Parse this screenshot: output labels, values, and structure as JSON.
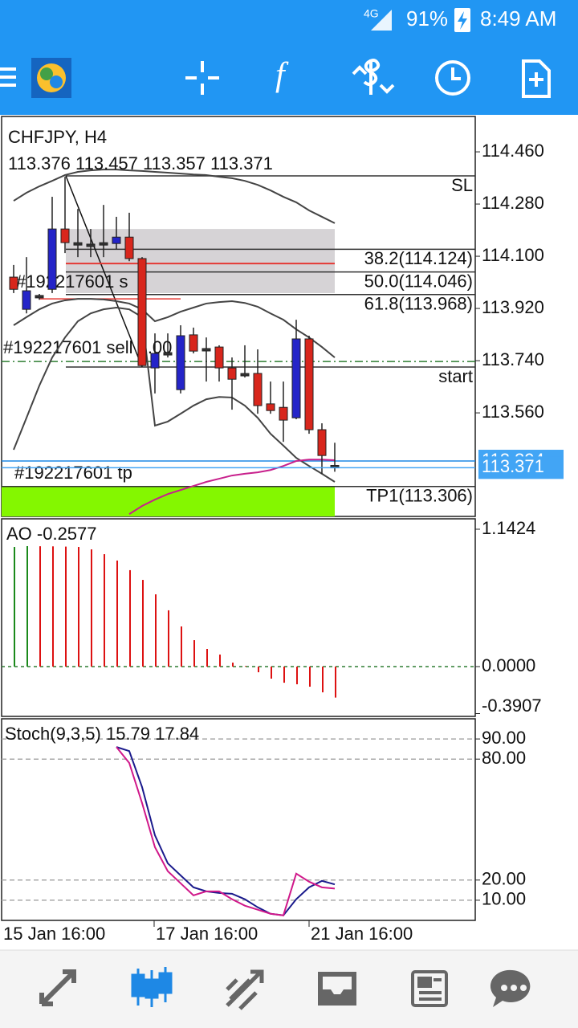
{
  "status_bar": {
    "network": "4G",
    "battery": "91%",
    "time": "8:49 AM"
  },
  "chart_data": [
    {
      "type": "candlestick",
      "title": "CHFJPY, H4",
      "subtitle": "113.376 113.457 113.357 113.371",
      "open": [
        114.028,
        113.917,
        113.959,
        113.986,
        114.194,
        114.144,
        114.139,
        114.144,
        114.144,
        114.166,
        114.092,
        113.715,
        113.765,
        113.64,
        113.829,
        113.779,
        113.787,
        113.715,
        113.693,
        113.696,
        113.591,
        113.579,
        113.543,
        113.815,
        113.502,
        113.376
      ],
      "high": [
        114.07,
        114.097,
        113.97,
        114.305,
        114.374,
        114.263,
        114.194,
        114.277,
        114.236,
        114.25,
        114.097,
        113.834,
        113.834,
        113.862,
        113.854,
        113.82,
        113.793,
        113.751,
        113.793,
        113.779,
        113.668,
        113.668,
        113.881,
        113.826,
        113.524,
        113.457
      ],
      "low": [
        113.973,
        113.903,
        113.95,
        113.973,
        114.111,
        114.097,
        114.097,
        114.097,
        114.125,
        114.083,
        113.718,
        113.627,
        113.751,
        113.627,
        113.765,
        113.668,
        113.668,
        113.571,
        113.682,
        113.557,
        113.557,
        113.46,
        113.538,
        113.488,
        113.35,
        113.357
      ],
      "close": [
        113.986,
        113.981,
        113.962,
        114.194,
        114.147,
        114.144,
        114.139,
        114.144,
        114.166,
        114.092,
        113.723,
        113.765,
        113.765,
        113.826,
        113.773,
        113.779,
        113.715,
        113.676,
        113.693,
        113.585,
        113.568,
        113.535,
        113.815,
        113.502,
        113.413,
        113.371
      ],
      "up_color": "#2424c8",
      "down_color": "#d8261c",
      "ylim": [
        113.203,
        114.582
      ],
      "yticks": [
        {
          "value": 114.46,
          "label": "114.460"
        },
        {
          "value": 114.28,
          "label": "114.280"
        },
        {
          "value": 114.1,
          "label": "114.100"
        },
        {
          "value": 113.92,
          "label": "113.920"
        },
        {
          "value": 113.74,
          "label": "113.740"
        },
        {
          "value": 113.56,
          "label": "113.560"
        }
      ],
      "bands": [
        {
          "color": "#444444",
          "values": [
            114.291,
            114.319,
            114.341,
            114.36,
            114.38,
            114.391,
            114.396,
            114.399,
            114.399,
            114.396,
            114.394,
            114.391,
            114.388,
            114.385,
            114.382,
            114.38,
            114.374,
            114.369,
            114.36,
            114.346,
            114.327,
            114.305,
            114.286,
            114.258,
            114.236,
            114.214
          ]
        },
        {
          "color": "#444444",
          "values": [
            113.862,
            113.89,
            113.917,
            113.937,
            113.948,
            113.953,
            113.953,
            113.951,
            113.945,
            113.937,
            113.917,
            113.876,
            113.89,
            113.909,
            113.923,
            113.937,
            113.942,
            113.945,
            113.939,
            113.926,
            113.903,
            113.881,
            113.848,
            113.82,
            113.787,
            113.751
          ]
        },
        {
          "color": "#444444",
          "values": [
            113.433,
            113.543,
            113.654,
            113.751,
            113.82,
            113.876,
            113.903,
            113.917,
            113.923,
            113.917,
            113.89,
            113.516,
            113.53,
            113.557,
            113.585,
            113.607,
            113.615,
            113.613,
            113.585,
            113.543,
            113.488,
            113.447,
            113.405,
            113.377,
            113.35,
            113.322
          ]
        },
        {
          "color": "#c8208c",
          "values": [
            null,
            null,
            null,
            null,
            null,
            null,
            null,
            null,
            null,
            113.211,
            113.239,
            113.261,
            113.28,
            113.294,
            113.308,
            113.322,
            113.333,
            113.344,
            113.35,
            113.355,
            113.363,
            113.377,
            113.394,
            113.399,
            113.399,
            113.397
          ]
        }
      ],
      "fib_zone": [
        113.973,
        114.194
      ],
      "levels": [
        {
          "label": "SL",
          "value": 114.377
        },
        {
          "label": "38.2(114.124)",
          "value": 114.124
        },
        {
          "label": "50.0(114.046)",
          "value": 114.046
        },
        {
          "label": "61.8(113.968)",
          "value": 113.968
        },
        {
          "label": "start",
          "value": 113.718
        },
        {
          "label": "TP1(113.306)",
          "value": 113.306
        }
      ],
      "orders": [
        {
          "label": "#192217601 sell 1.00",
          "value": 113.737,
          "color": "#2e7d32"
        },
        {
          "label": "#192217601 tp",
          "value": 113.394,
          "color": "#1e88e5"
        },
        {
          "label": "#192217601 s",
          "value": 113.953,
          "color": "#e53935"
        }
      ],
      "red_line": 114.075,
      "bid": 113.371
    },
    {
      "type": "bar",
      "title": "AO -0.2577",
      "values": [
        0.995,
        1.002,
        1.001,
        1.0,
        0.998,
        0.995,
        0.975,
        0.935,
        0.882,
        0.802,
        0.721,
        0.601,
        0.468,
        0.334,
        0.22,
        0.147,
        0.1,
        0.033,
        0.005,
        -0.047,
        -0.1,
        -0.134,
        -0.147,
        -0.167,
        -0.214,
        -0.2577
      ],
      "up_color": "#1b8a1b",
      "down_color": "#dd1111",
      "ylim": [
        -0.414,
        1.229
      ],
      "yticks": [
        1.1424,
        {
          "value": 0,
          "label": "0.0000"
        },
        -0.3907
      ]
    },
    {
      "type": "line",
      "title": "Stoch(9,3,5) 15.79 17.84",
      "series": [
        {
          "color": "#1a1a8c",
          "values": [
            null,
            null,
            null,
            null,
            null,
            null,
            null,
            null,
            86.0,
            84.0,
            66.1,
            42.2,
            28.3,
            22.3,
            16.4,
            14.4,
            13.6,
            13.2,
            10.5,
            6.5,
            3.3,
            2.5,
            10.5,
            16.4,
            19.6,
            17.84
          ]
        },
        {
          "color": "#d0188a",
          "values": [
            null,
            null,
            null,
            null,
            null,
            null,
            null,
            null,
            86.0,
            78.1,
            58.2,
            36.3,
            24.4,
            18.4,
            12.4,
            14.4,
            14.4,
            10.5,
            7.3,
            5.3,
            3.3,
            2.5,
            23.2,
            19.2,
            16.4,
            15.79
          ]
        }
      ],
      "ylim": [
        0,
        100
      ],
      "yticks": [
        {
          "value": 90,
          "label": "90.00"
        },
        {
          "value": 80,
          "label": "80.00"
        },
        {
          "value": 20,
          "label": "20.00"
        },
        {
          "value": 10,
          "label": "10.00"
        }
      ]
    }
  ],
  "x_labels": [
    "15 Jan 16:00",
    "17 Jan 16:00",
    "21 Jan 16:00"
  ]
}
